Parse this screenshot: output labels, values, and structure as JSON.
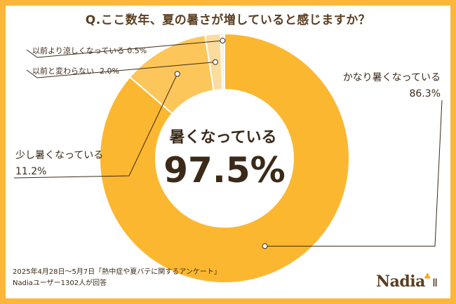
{
  "header": {
    "title": "Q.ここ数年、夏の暑さが増していると感じますか？"
  },
  "chart_data": {
    "type": "pie",
    "donut": true,
    "slices": [
      {
        "label": "かなり暑くなっている",
        "value": 86.3,
        "display": "86.3%",
        "color": "#fcb731"
      },
      {
        "label": "少し暑くなっている",
        "value": 11.2,
        "display": "11.2%",
        "color": "#fdc65a"
      },
      {
        "label": "以前と変わらない",
        "value": 2.0,
        "display": "2.0%",
        "color": "#fbdc9e"
      },
      {
        "label": "以前より涼しくなっている",
        "value": 0.5,
        "display": "0.5%",
        "color": "#fdf0d7"
      }
    ],
    "center_label": "暑くなっている",
    "center_value": "97.5%"
  },
  "footer": {
    "line1": "2025年4月28日～5月7日「熱中症や夏バテに関するアンケート」",
    "line2": "Nadiaユーザー1302人が回答"
  },
  "brand": {
    "name": "Nadia",
    "accent_color": "#f5a623",
    "text_color": "#5a3e21"
  }
}
